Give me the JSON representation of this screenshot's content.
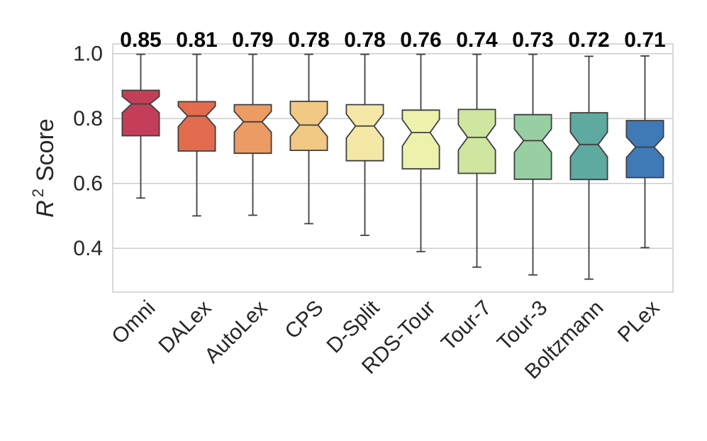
{
  "chart_data": {
    "type": "boxplot",
    "notched": true,
    "title": "",
    "xlabel": "",
    "ylabel": "R² Score",
    "ylabel_parts": {
      "var": "R",
      "sup": "2",
      "text": "Score"
    },
    "ylim": [
      0.265,
      1.03
    ],
    "yticks": [
      0.4,
      0.6,
      0.8,
      1.0
    ],
    "ytick_labels": [
      "0.4",
      "0.6",
      "0.8",
      "1.0"
    ],
    "grid": true,
    "categories": [
      "Omni",
      "DALex",
      "AutoLex",
      "CPS",
      "D-Split",
      "RDS-Tour",
      "Tour-7",
      "Tour-3",
      "Boltzmann",
      "PLex"
    ],
    "median_labels": [
      "0.85",
      "0.81",
      "0.79",
      "0.78",
      "0.78",
      "0.76",
      "0.74",
      "0.73",
      "0.72",
      "0.71"
    ],
    "colors": [
      "#c33f59",
      "#e36c4f",
      "#eb9b63",
      "#f1c884",
      "#f5e8a7",
      "#ecf2ac",
      "#cfe6a0",
      "#98cfa2",
      "#5ea9a0",
      "#3f7ab6"
    ],
    "edge_color": "#3f3f3f",
    "boxes": [
      {
        "name": "Omni",
        "whislo": 0.555,
        "q1": 0.747,
        "med": 0.845,
        "q3": 0.887,
        "whishi": 0.998,
        "notch_lo": 0.818,
        "notch_hi": 0.868
      },
      {
        "name": "DALex",
        "whislo": 0.5,
        "q1": 0.7,
        "med": 0.808,
        "q3": 0.852,
        "whishi": 0.998,
        "notch_lo": 0.775,
        "notch_hi": 0.838
      },
      {
        "name": "AutoLex",
        "whislo": 0.502,
        "q1": 0.693,
        "med": 0.79,
        "q3": 0.843,
        "whishi": 0.998,
        "notch_lo": 0.758,
        "notch_hi": 0.822
      },
      {
        "name": "CPS",
        "whislo": 0.476,
        "q1": 0.702,
        "med": 0.78,
        "q3": 0.853,
        "whishi": 0.998,
        "notch_lo": 0.745,
        "notch_hi": 0.815
      },
      {
        "name": "D-Split",
        "whislo": 0.44,
        "q1": 0.67,
        "med": 0.777,
        "q3": 0.843,
        "whishi": 0.998,
        "notch_lo": 0.74,
        "notch_hi": 0.814
      },
      {
        "name": "RDS-Tour",
        "whislo": 0.39,
        "q1": 0.645,
        "med": 0.757,
        "q3": 0.826,
        "whishi": 0.998,
        "notch_lo": 0.715,
        "notch_hi": 0.797
      },
      {
        "name": "Tour-7",
        "whislo": 0.342,
        "q1": 0.631,
        "med": 0.742,
        "q3": 0.828,
        "whishi": 0.998,
        "notch_lo": 0.703,
        "notch_hi": 0.781
      },
      {
        "name": "Tour-3",
        "whislo": 0.318,
        "q1": 0.613,
        "med": 0.732,
        "q3": 0.812,
        "whishi": 0.998,
        "notch_lo": 0.696,
        "notch_hi": 0.768
      },
      {
        "name": "Boltzmann",
        "whislo": 0.305,
        "q1": 0.612,
        "med": 0.72,
        "q3": 0.818,
        "whishi": 0.992,
        "notch_lo": 0.682,
        "notch_hi": 0.758
      },
      {
        "name": "PLex",
        "whislo": 0.402,
        "q1": 0.618,
        "med": 0.712,
        "q3": 0.794,
        "whishi": 0.993,
        "notch_lo": 0.68,
        "notch_hi": 0.743
      }
    ]
  }
}
